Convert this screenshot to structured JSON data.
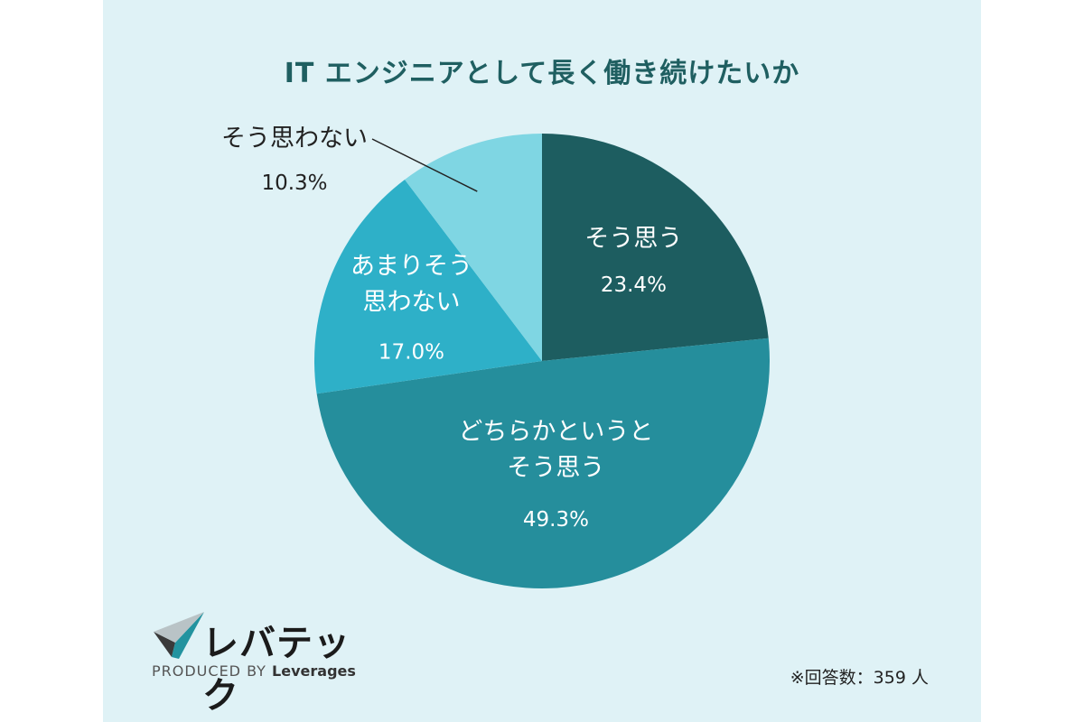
{
  "chart_data": {
    "type": "pie",
    "title": "IT エンジニアとして長く働き続けたいか",
    "slices": [
      {
        "label_lines": [
          "そう思う"
        ],
        "value": 23.4,
        "value_label": "23.4%",
        "color": "#1d5d60",
        "text_color": "#ffffff"
      },
      {
        "label_lines": [
          "どちらかというと",
          "そう思う"
        ],
        "value": 49.3,
        "value_label": "49.3%",
        "color": "#258e9c",
        "text_color": "#ffffff"
      },
      {
        "label_lines": [
          "あまりそう",
          "思わない"
        ],
        "value": 17.0,
        "value_label": "17.0%",
        "color": "#2eb0c8",
        "text_color": "#ffffff"
      },
      {
        "label_lines": [
          "そう思わない"
        ],
        "value": 10.3,
        "value_label": "10.3%",
        "color": "#7fd6e3",
        "text_color": "#222222"
      }
    ],
    "note": "※回答数：359 人"
  },
  "branding": {
    "logo_text": "レバテック",
    "produced_by": "PRODUCED BY",
    "company": "Leverages"
  },
  "colors": {
    "background": "#dff2f6",
    "title": "#1f5f61"
  }
}
